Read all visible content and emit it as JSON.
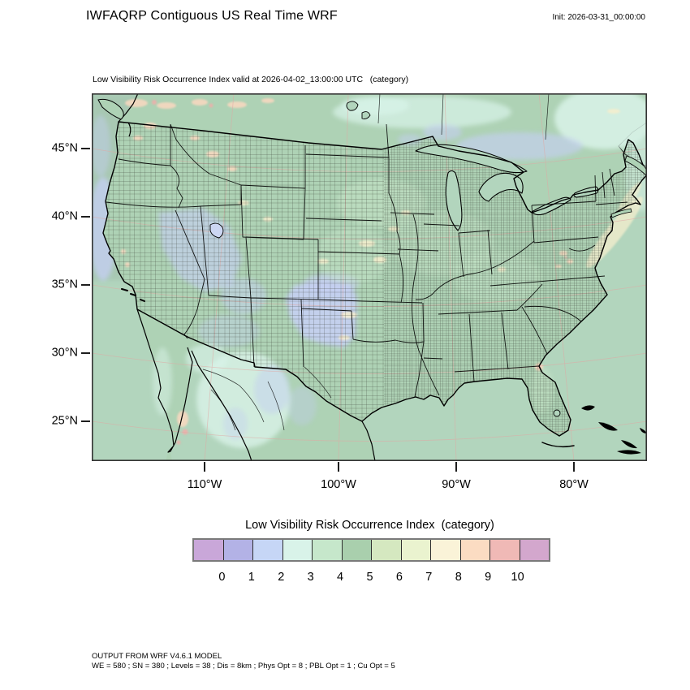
{
  "header": {
    "title": "IWFAQRP Contiguous US Real Time WRF",
    "init_label": "Init: 2026-03-31_00:00:00"
  },
  "map": {
    "subtitle": "Low Visibility Risk Occurrence Index valid at 2026-04-02_13:00:00 UTC   (category)",
    "lat_ticks": [
      "45°N",
      "40°N",
      "35°N",
      "30°N",
      "25°N"
    ],
    "lon_ticks": [
      "110°W",
      "100°W",
      "90°W",
      "80°W"
    ]
  },
  "legend": {
    "title": "Low Visibility Risk Occurrence Index  (category)",
    "tick_labels": [
      "0",
      "1",
      "2",
      "3",
      "4",
      "5",
      "6",
      "7",
      "8",
      "9",
      "10"
    ],
    "colors": [
      "#c9a7d9",
      "#b3b2e6",
      "#c6d6f6",
      "#d9f3e9",
      "#c6e7cb",
      "#a9cfad",
      "#d5e8c0",
      "#eaf3cf",
      "#faf3d8",
      "#fbdcc2",
      "#f0b9b6",
      "#d3a7cd"
    ]
  },
  "footer": {
    "line1": "OUTPUT FROM WRF V4.6.1 MODEL",
    "line2": "WE = 580 ; SN = 380 ; Levels = 38 ; Dis = 8km ; Phys Opt = 8 ; PBL Opt = 1 ; Cu Opt = 5"
  },
  "map_colors": {
    "water": "#b2d5bd",
    "land": "#aed2b5",
    "ocean_nw": "#a6c6b1",
    "mint": "#d9f3e9",
    "periwinkle": "#c4cff1",
    "light_green": "#c9e7ca",
    "cream": "#f6eecd",
    "peach": "#fbd9c0",
    "pink": "#eeb0ab",
    "graticule": "#e0a8a4",
    "county_line": "#3c4038",
    "state_line": "#000000"
  },
  "chart_data": {
    "type": "heatmap",
    "title": "Low Visibility Risk Occurrence Index (category)",
    "valid_time": "2026-04-02_13:00:00 UTC",
    "init_time": "2026-03-31_00:00:00",
    "legend_categories": [
      0,
      1,
      2,
      3,
      4,
      5,
      6,
      7,
      8,
      9,
      10
    ],
    "lat_axis": [
      "25°N",
      "30°N",
      "35°N",
      "40°N",
      "45°N"
    ],
    "lon_axis": [
      "110°W",
      "100°W",
      "90°W",
      "80°W"
    ],
    "region_values": [
      {
        "region": "most of CONUS, Gulf of Mexico and Atlantic waters",
        "category": "4-5 (green)"
      },
      {
        "region": "Great Basin (Nevada/Utah) and Four Corners",
        "category": "1-2 (periwinkle blue, mottled)"
      },
      {
        "region": "TX/OK panhandles, E New Mexico, SE Colorado, W Kansas",
        "category": "1-2 (periwinkle blue, solid)"
      },
      {
        "region": "Pacific coastal band off Oregon/N California",
        "category": "1-2 (periwinkle blue)"
      },
      {
        "region": "S Canada north of the Great Lakes",
        "category": "1-2 patches"
      },
      {
        "region": "NW Mexico and NE Canada/Atlantic corner",
        "category": "2-3 (pale mint)"
      },
      {
        "region": "Gulf-Stream streak off the east coast, scattered plains speckles",
        "category": "7-8 (cream)"
      },
      {
        "region": "BC/Alberta border strip, Baja tip, FL/GA coast spot, Appalachian speckles",
        "category": "8-10 (peach/pink)"
      }
    ]
  }
}
